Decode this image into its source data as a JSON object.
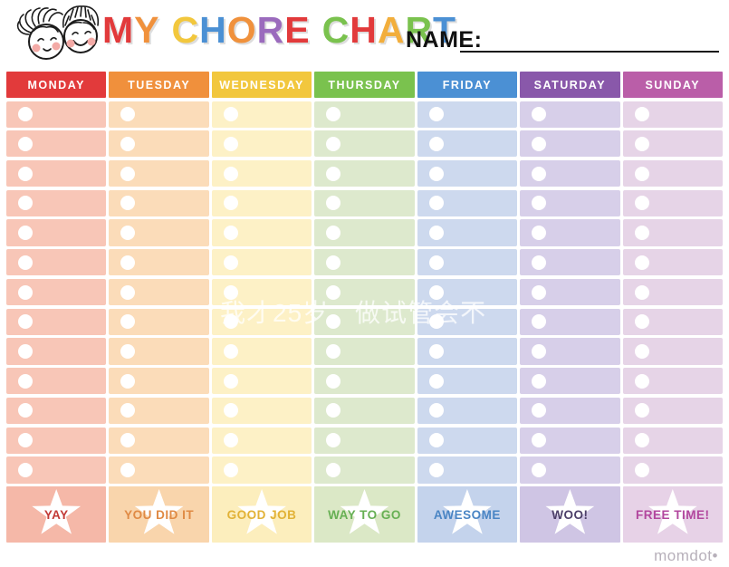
{
  "page": {
    "title": "MY CHORE CHART",
    "title_letters": [
      {
        "ch": "M",
        "color": "#e23a3b"
      },
      {
        "ch": "Y",
        "color": "#f0913c"
      },
      {
        "ch": " "
      },
      {
        "ch": "C",
        "color": "#f2c73d"
      },
      {
        "ch": "H",
        "color": "#4b90d4"
      },
      {
        "ch": "O",
        "color": "#f0913c"
      },
      {
        "ch": "R",
        "color": "#9b6bbd"
      },
      {
        "ch": "E",
        "color": "#e23a3b"
      },
      {
        "ch": " "
      },
      {
        "ch": "C",
        "color": "#7ac24e"
      },
      {
        "ch": "H",
        "color": "#e23a3b"
      },
      {
        "ch": "A",
        "color": "#f2ae3c"
      },
      {
        "ch": "R",
        "color": "#7ac24e"
      },
      {
        "ch": "T",
        "color": "#4b90d4"
      }
    ],
    "name_label": "NAME:",
    "name_value": "",
    "watermark": "我才25岁，做试管会不",
    "brand": "momdot•"
  },
  "chart": {
    "rows_per_day": 13,
    "columns": [
      {
        "day": "MONDAY",
        "header_color": "#e23a3b",
        "cell_color": "#f8c6b7",
        "footer_color": "#f5b8a8",
        "footer_label": "YAY",
        "footer_text_color": "#c23a36"
      },
      {
        "day": "TUESDAY",
        "header_color": "#f0903c",
        "cell_color": "#fbdcb9",
        "footer_color": "#f9d5ac",
        "footer_label": "YOU DID IT",
        "footer_text_color": "#e08a44"
      },
      {
        "day": "WEDNESDAY",
        "header_color": "#f2c73d",
        "cell_color": "#fdf1c6",
        "footer_color": "#fceebd",
        "footer_label": "GOOD JOB",
        "footer_text_color": "#e2b237"
      },
      {
        "day": "THURSDAY",
        "header_color": "#7ac24e",
        "cell_color": "#dde9cd",
        "footer_color": "#dbe8c6",
        "footer_label": "WAY TO GO",
        "footer_text_color": "#67b054"
      },
      {
        "day": "FRIDAY",
        "header_color": "#4b90d4",
        "cell_color": "#cdd9ee",
        "footer_color": "#c4d3ec",
        "footer_label": "AWESOME",
        "footer_text_color": "#4a85c4"
      },
      {
        "day": "SATURDAY",
        "header_color": "#8958aa",
        "cell_color": "#d7cfe9",
        "footer_color": "#cfc5e4",
        "footer_label": "WOO!",
        "footer_text_color": "#4d4069"
      },
      {
        "day": "SUNDAY",
        "header_color": "#ba5ea8",
        "cell_color": "#e6d4e7",
        "footer_color": "#e7d2e7",
        "footer_label": "FREE TIME!",
        "footer_text_color": "#b2479e"
      }
    ]
  }
}
